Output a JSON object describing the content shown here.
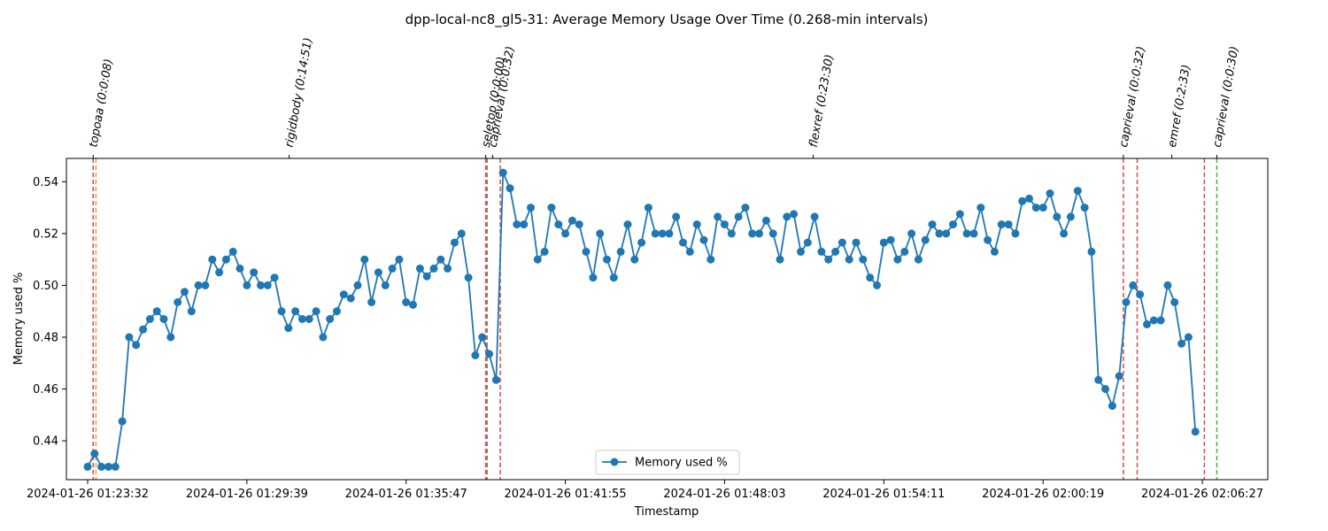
{
  "chart_data": {
    "type": "line",
    "title": "dpp-local-nc8_gl5-31: Average Memory Usage Over Time (0.268-min intervals)",
    "xlabel": "Timestamp",
    "ylabel": "Memory used %",
    "x_tick_labels": [
      "2024-01-26 01:23:32",
      "2024-01-26 01:29:39",
      "2024-01-26 01:35:47",
      "2024-01-26 01:41:55",
      "2024-01-26 01:48:03",
      "2024-01-26 01:54:11",
      "2024-01-26 02:00:19",
      "2024-01-26 02:06:27"
    ],
    "y_ticks": [
      0.44,
      0.46,
      0.48,
      0.5,
      0.52,
      0.54
    ],
    "ylim": [
      0.425,
      0.549
    ],
    "x_interval_minutes": 0.268,
    "grid": false,
    "legend": "lower-center",
    "series": [
      {
        "name": "Memory used %",
        "color": "#1f77b4",
        "values": [
          0.43,
          0.435,
          0.43,
          0.43,
          0.43,
          0.4475,
          0.48,
          0.477,
          0.483,
          0.487,
          0.49,
          0.487,
          0.48,
          0.4935,
          0.4975,
          0.49,
          0.5,
          0.5,
          0.51,
          0.505,
          0.51,
          0.513,
          0.5065,
          0.5,
          0.505,
          0.5,
          0.5,
          0.503,
          0.49,
          0.4835,
          0.49,
          0.487,
          0.487,
          0.49,
          0.48,
          0.487,
          0.49,
          0.4965,
          0.495,
          0.5,
          0.51,
          0.4935,
          0.505,
          0.5,
          0.5065,
          0.51,
          0.4935,
          0.4925,
          0.5065,
          0.5035,
          0.5065,
          0.51,
          0.5065,
          0.5165,
          0.52,
          0.503,
          0.473,
          0.48,
          0.4735,
          0.4635,
          0.5435,
          0.5375,
          0.5235,
          0.5235,
          0.53,
          0.51,
          0.513,
          0.53,
          0.5235,
          0.52,
          0.525,
          0.5235,
          0.513,
          0.503,
          0.52,
          0.51,
          0.503,
          0.513,
          0.5235,
          0.51,
          0.5165,
          0.53,
          0.52,
          0.52,
          0.52,
          0.5265,
          0.5165,
          0.513,
          0.5235,
          0.5175,
          0.51,
          0.5265,
          0.5235,
          0.52,
          0.5265,
          0.53,
          0.52,
          0.52,
          0.525,
          0.52,
          0.51,
          0.5265,
          0.5275,
          0.513,
          0.5165,
          0.5265,
          0.513,
          0.51,
          0.513,
          0.5165,
          0.51,
          0.5165,
          0.51,
          0.503,
          0.5,
          0.5165,
          0.5175,
          0.51,
          0.513,
          0.52,
          0.51,
          0.5175,
          0.5235,
          0.52,
          0.52,
          0.5235,
          0.5275,
          0.52,
          0.52,
          0.53,
          0.5175,
          0.513,
          0.5235,
          0.5235,
          0.52,
          0.5325,
          0.5335,
          0.53,
          0.53,
          0.5355,
          0.5265,
          0.52,
          0.5265,
          0.5365,
          0.53,
          0.513,
          0.4635,
          0.46,
          0.4535,
          0.465,
          0.4935,
          0.5,
          0.4965,
          0.485,
          0.4865,
          0.4865,
          0.5,
          0.4935,
          0.4775,
          0.48,
          0.4435
        ]
      }
    ],
    "events": [
      {
        "label": "topoaa (0:0:08)",
        "index": 0.8,
        "color": "#d62728"
      },
      {
        "label": "",
        "index": 1.2,
        "color": "#ff7f0e"
      },
      {
        "label": "rigidbody (0:14:51)",
        "index": 29.1,
        "color": ""
      },
      {
        "label": "seletop (0:0:00)",
        "index": 57.5,
        "color": "#d62728"
      },
      {
        "label": "",
        "index": 57.7,
        "color": "#8c564b"
      },
      {
        "label": "caprieval (0:0:32)",
        "index": 58.5,
        "color": ""
      },
      {
        "label": "",
        "index": 59.6,
        "color": "#d62728"
      },
      {
        "label": "flexref (0:23:30)",
        "index": 104.8,
        "color": ""
      },
      {
        "label": "caprieval (0:0:32)",
        "index": 149.6,
        "color": "#d62728"
      },
      {
        "label": "",
        "index": 151.6,
        "color": "#d62728"
      },
      {
        "label": "emref (0:2:33)",
        "index": 156.6,
        "color": ""
      },
      {
        "label": "",
        "index": 161.3,
        "color": "#d62728"
      },
      {
        "label": "caprieval (0:0:30)",
        "index": 163.1,
        "color": "#2ca02c"
      }
    ]
  }
}
